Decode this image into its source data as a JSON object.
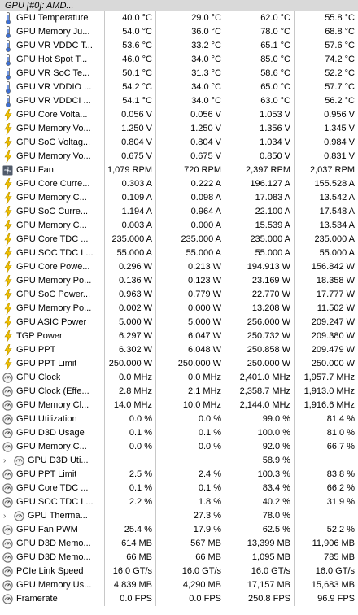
{
  "header": {
    "title": "GPU [#0]: AMD..."
  },
  "rows": [
    {
      "icon": "thermometer",
      "label": "GPU Temperature",
      "v": [
        "40.0 °C",
        "29.0 °C",
        "62.0 °C",
        "55.8 °C"
      ]
    },
    {
      "icon": "thermometer",
      "label": "GPU Memory Ju...",
      "v": [
        "54.0 °C",
        "36.0 °C",
        "78.0 °C",
        "68.8 °C"
      ]
    },
    {
      "icon": "thermometer",
      "label": "GPU VR VDDC T...",
      "v": [
        "53.6 °C",
        "33.2 °C",
        "65.1 °C",
        "57.6 °C"
      ]
    },
    {
      "icon": "thermometer",
      "label": "GPU Hot Spot T...",
      "v": [
        "46.0 °C",
        "34.0 °C",
        "85.0 °C",
        "74.2 °C"
      ]
    },
    {
      "icon": "thermometer",
      "label": "GPU VR SoC Te...",
      "v": [
        "50.1 °C",
        "31.3 °C",
        "58.6 °C",
        "52.2 °C"
      ]
    },
    {
      "icon": "thermometer",
      "label": "GPU VR VDDIO ...",
      "v": [
        "54.2 °C",
        "34.0 °C",
        "65.0 °C",
        "57.7 °C"
      ]
    },
    {
      "icon": "thermometer",
      "label": "GPU VR VDDCI ...",
      "v": [
        "54.1 °C",
        "34.0 °C",
        "63.0 °C",
        "56.2 °C"
      ]
    },
    {
      "icon": "bolt",
      "label": "GPU Core Volta...",
      "v": [
        "0.056 V",
        "0.056 V",
        "1.053 V",
        "0.956 V"
      ]
    },
    {
      "icon": "bolt",
      "label": "GPU Memory Vo...",
      "v": [
        "1.250 V",
        "1.250 V",
        "1.356 V",
        "1.345 V"
      ]
    },
    {
      "icon": "bolt",
      "label": "GPU SoC Voltag...",
      "v": [
        "0.804 V",
        "0.804 V",
        "1.034 V",
        "0.984 V"
      ]
    },
    {
      "icon": "bolt",
      "label": "GPU Memory Vo...",
      "v": [
        "0.675 V",
        "0.675 V",
        "0.850 V",
        "0.831 V"
      ]
    },
    {
      "icon": "fan",
      "label": "GPU Fan",
      "v": [
        "1,079 RPM",
        "720 RPM",
        "2,397 RPM",
        "2,037 RPM"
      ]
    },
    {
      "icon": "bolt",
      "label": "GPU Core Curre...",
      "v": [
        "0.303 A",
        "0.222 A",
        "196.127 A",
        "155.528 A"
      ]
    },
    {
      "icon": "bolt",
      "label": "GPU Memory C...",
      "v": [
        "0.109 A",
        "0.098 A",
        "17.083 A",
        "13.542 A"
      ]
    },
    {
      "icon": "bolt",
      "label": "GPU SoC Curre...",
      "v": [
        "1.194 A",
        "0.964 A",
        "22.100 A",
        "17.548 A"
      ]
    },
    {
      "icon": "bolt",
      "label": "GPU Memory C...",
      "v": [
        "0.003 A",
        "0.000 A",
        "15.539 A",
        "13.534 A"
      ]
    },
    {
      "icon": "bolt",
      "label": "GPU Core TDC ...",
      "v": [
        "235.000 A",
        "235.000 A",
        "235.000 A",
        "235.000 A"
      ]
    },
    {
      "icon": "bolt",
      "label": "GPU SOC TDC L...",
      "v": [
        "55.000 A",
        "55.000 A",
        "55.000 A",
        "55.000 A"
      ]
    },
    {
      "icon": "bolt",
      "label": "GPU Core Powe...",
      "v": [
        "0.296 W",
        "0.213 W",
        "194.913 W",
        "156.842 W"
      ]
    },
    {
      "icon": "bolt",
      "label": "GPU Memory Po...",
      "v": [
        "0.136 W",
        "0.123 W",
        "23.169 W",
        "18.358 W"
      ]
    },
    {
      "icon": "bolt",
      "label": "GPU SoC Power...",
      "v": [
        "0.963 W",
        "0.779 W",
        "22.770 W",
        "17.777 W"
      ]
    },
    {
      "icon": "bolt",
      "label": "GPU Memory Po...",
      "v": [
        "0.002 W",
        "0.000 W",
        "13.208 W",
        "11.502 W"
      ]
    },
    {
      "icon": "bolt",
      "label": "GPU ASIC Power",
      "v": [
        "5.000 W",
        "5.000 W",
        "256.000 W",
        "209.247 W"
      ]
    },
    {
      "icon": "bolt",
      "label": "TGP Power",
      "v": [
        "6.297 W",
        "6.047 W",
        "250.732 W",
        "209.380 W"
      ]
    },
    {
      "icon": "bolt",
      "label": "GPU PPT",
      "v": [
        "6.302 W",
        "6.048 W",
        "250.858 W",
        "209.479 W"
      ]
    },
    {
      "icon": "bolt",
      "label": "GPU PPT Limit",
      "v": [
        "250.000 W",
        "250.000 W",
        "250.000 W",
        "250.000 W"
      ]
    },
    {
      "icon": "gauge",
      "label": "GPU Clock",
      "v": [
        "0.0 MHz",
        "0.0 MHz",
        "2,401.0 MHz",
        "1,957.7 MHz"
      ]
    },
    {
      "icon": "gauge",
      "label": "GPU Clock (Effe...",
      "v": [
        "2.8 MHz",
        "2.1 MHz",
        "2,358.7 MHz",
        "1,913.0 MHz"
      ]
    },
    {
      "icon": "gauge",
      "label": "GPU Memory Cl...",
      "v": [
        "14.0 MHz",
        "10.0 MHz",
        "2,144.0 MHz",
        "1,916.6 MHz"
      ]
    },
    {
      "icon": "gauge",
      "label": "GPU Utilization",
      "v": [
        "0.0 %",
        "0.0 %",
        "99.0 %",
        "81.4 %"
      ]
    },
    {
      "icon": "gauge",
      "label": "GPU D3D Usage",
      "v": [
        "0.1 %",
        "0.1 %",
        "100.0 %",
        "81.0 %"
      ]
    },
    {
      "icon": "gauge",
      "label": "GPU Memory C...",
      "v": [
        "0.0 %",
        "0.0 %",
        "92.0 %",
        "66.7 %"
      ]
    },
    {
      "icon": "expand",
      "label": "GPU D3D Uti...",
      "v": [
        "",
        "",
        "58.9 %",
        ""
      ]
    },
    {
      "icon": "gauge",
      "label": "GPU PPT Limit",
      "v": [
        "2.5 %",
        "2.4 %",
        "100.3 %",
        "83.8 %"
      ]
    },
    {
      "icon": "gauge",
      "label": "GPU Core TDC ...",
      "v": [
        "0.1 %",
        "0.1 %",
        "83.4 %",
        "66.2 %"
      ]
    },
    {
      "icon": "gauge",
      "label": "GPU SOC TDC L...",
      "v": [
        "2.2 %",
        "1.8 %",
        "40.2 %",
        "31.9 %"
      ]
    },
    {
      "icon": "expand",
      "label": "GPU Therma...",
      "v": [
        "",
        "27.3 %",
        "78.0 %",
        ""
      ]
    },
    {
      "icon": "gauge",
      "label": "GPU Fan PWM",
      "v": [
        "25.4 %",
        "17.9 %",
        "62.5 %",
        "52.2 %"
      ]
    },
    {
      "icon": "gauge",
      "label": "GPU D3D Memo...",
      "v": [
        "614 MB",
        "567 MB",
        "13,399 MB",
        "11,906 MB"
      ]
    },
    {
      "icon": "gauge",
      "label": "GPU D3D Memo...",
      "v": [
        "66 MB",
        "66 MB",
        "1,095 MB",
        "785 MB"
      ]
    },
    {
      "icon": "gauge",
      "label": "PCIe Link Speed",
      "v": [
        "16.0 GT/s",
        "16.0 GT/s",
        "16.0 GT/s",
        "16.0 GT/s"
      ]
    },
    {
      "icon": "gauge",
      "label": "GPU Memory Us...",
      "v": [
        "4,839 MB",
        "4,290 MB",
        "17,157 MB",
        "15,683 MB"
      ]
    },
    {
      "icon": "gauge",
      "label": "Framerate",
      "v": [
        "0.0 FPS",
        "0.0 FPS",
        "250.8 FPS",
        "96.9 FPS"
      ]
    }
  ],
  "icon_colors": {
    "thermometer": "#3b6fd6",
    "bolt": "#f2c200",
    "gauge": "#707070",
    "fan": "#505a6a"
  }
}
